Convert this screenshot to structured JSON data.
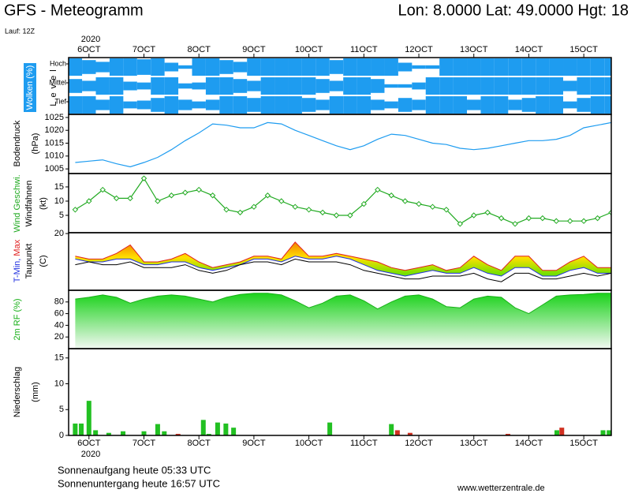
{
  "header": {
    "title": "GFS - Meteogramm",
    "location": "Lon: 8.0000 Lat: 49.0000 Hgt: 18",
    "run": "Lauf: 12Z"
  },
  "time_axis": {
    "year": "2020",
    "xlim": [
      5.63,
      15.5
    ],
    "xticks": [
      {
        "value": 6,
        "label": "6OCT"
      },
      {
        "value": 7,
        "label": "7OCT"
      },
      {
        "value": 8,
        "label": "8OCT"
      },
      {
        "value": 9,
        "label": "9OCT"
      },
      {
        "value": 10,
        "label": "10OCT"
      },
      {
        "value": 11,
        "label": "11OCT"
      },
      {
        "value": 12,
        "label": "12OCT"
      },
      {
        "value": 13,
        "label": "13OCT"
      },
      {
        "value": 14,
        "label": "14OCT"
      },
      {
        "value": 15,
        "label": "15OCT"
      }
    ]
  },
  "chart_data": [
    {
      "type": "cloud",
      "ylabel": "Wolken (%)",
      "level_label": "Level",
      "levels": [
        "Hoch",
        "Mittel",
        "Tief"
      ],
      "color": "#1e9cf0",
      "ylim": [
        0,
        100
      ],
      "x": [
        5.75,
        6,
        6.25,
        6.5,
        6.75,
        7,
        7.25,
        7.5,
        7.75,
        8,
        8.25,
        8.5,
        8.75,
        9,
        9.25,
        9.5,
        9.75,
        10,
        10.25,
        10.5,
        10.75,
        11,
        11.25,
        11.5,
        11.75,
        12,
        12.25,
        12.5,
        12.75,
        13,
        13.25,
        13.5,
        13.75,
        14,
        14.25,
        14.5,
        14.75,
        15,
        15.25,
        15.5
      ],
      "series": [
        {
          "values": [
            100,
            80,
            60,
            100,
            100,
            90,
            100,
            50,
            20,
            100,
            100,
            80,
            60,
            100,
            100,
            100,
            100,
            100,
            100,
            80,
            100,
            100,
            100,
            100,
            50,
            20,
            20,
            100,
            100,
            100,
            100,
            100,
            100,
            100,
            100,
            100,
            100,
            100,
            100,
            100
          ]
        },
        {
          "values": [
            80,
            60,
            100,
            100,
            50,
            40,
            100,
            100,
            30,
            40,
            100,
            100,
            80,
            60,
            100,
            100,
            100,
            100,
            80,
            60,
            100,
            100,
            80,
            20,
            20,
            40,
            100,
            100,
            100,
            100,
            100,
            100,
            100,
            100,
            100,
            100,
            60,
            100,
            100,
            100
          ]
        },
        {
          "values": [
            100,
            100,
            60,
            100,
            40,
            50,
            80,
            100,
            60,
            40,
            60,
            100,
            100,
            80,
            100,
            100,
            100,
            80,
            60,
            100,
            100,
            100,
            60,
            40,
            80,
            60,
            100,
            100,
            100,
            60,
            100,
            100,
            60,
            80,
            100,
            100,
            40,
            80,
            100,
            100
          ]
        }
      ]
    },
    {
      "type": "line",
      "ylabel": [
        "Bodendruck",
        "(hPa)"
      ],
      "ylim": [
        1003.2,
        1026.2
      ],
      "yticks": [
        1005,
        1010,
        1015,
        1020,
        1025
      ],
      "x": [
        5.75,
        6,
        6.25,
        6.5,
        6.75,
        7,
        7.25,
        7.5,
        7.75,
        8,
        8.25,
        8.5,
        8.75,
        9,
        9.25,
        9.5,
        9.75,
        10,
        10.25,
        10.5,
        10.75,
        11,
        11.25,
        11.5,
        11.75,
        12,
        12.25,
        12.5,
        12.75,
        13,
        13.25,
        13.5,
        13.75,
        14,
        14.25,
        14.5,
        14.75,
        15,
        15.25,
        15.5
      ],
      "series": [
        {
          "color": "#1e9cf0",
          "values": [
            1007.5,
            1008,
            1008.5,
            1007,
            1005.8,
            1007.5,
            1009.5,
            1012.5,
            1016,
            1019,
            1022.5,
            1022,
            1021,
            1021,
            1023,
            1022.5,
            1020,
            1018,
            1016,
            1014,
            1012.5,
            1014,
            1016.5,
            1018.5,
            1018,
            1016.5,
            1015,
            1014.5,
            1013,
            1012.5,
            1013,
            1014,
            1015,
            1016,
            1016,
            1016.5,
            1018,
            1021,
            1022,
            1023
          ]
        }
      ]
    },
    {
      "type": "line",
      "markers": true,
      "ylabel": [
        "Windfahnen",
        "(kt)"
      ],
      "ylim": [
        -1.1,
        19.7
      ],
      "yticks": [
        5,
        10,
        15
      ],
      "x": [
        5.75,
        6,
        6.25,
        6.5,
        6.75,
        7,
        7.25,
        7.5,
        7.75,
        8,
        8.25,
        8.5,
        8.75,
        9,
        9.25,
        9.5,
        9.75,
        10,
        10.25,
        10.5,
        10.75,
        11,
        11.25,
        11.5,
        11.75,
        12,
        12.25,
        12.5,
        12.75,
        13,
        13.25,
        13.5,
        13.75,
        14,
        14.25,
        14.5,
        14.75,
        15,
        15.25,
        15.5
      ],
      "series": [
        {
          "name": "Wind Geschwi.",
          "color": "#22aa22",
          "values": [
            7,
            10,
            14,
            11,
            11,
            18,
            10,
            12,
            13,
            14,
            12,
            7,
            6,
            8,
            12,
            10,
            8,
            7,
            6,
            5,
            5,
            9,
            14,
            12,
            10,
            9,
            8,
            7,
            2,
            5,
            6,
            4,
            2,
            4,
            4,
            3,
            3,
            3,
            4,
            6
          ]
        }
      ]
    },
    {
      "type": "range",
      "ylabel": [
        "(C)"
      ],
      "ylim": [
        0,
        20.3
      ],
      "yticks": [
        20
      ],
      "fill_colors": [
        "#f07800",
        "#ffe000",
        "#70e000"
      ],
      "x": [
        5.75,
        6,
        6.25,
        6.5,
        6.75,
        7,
        7.25,
        7.5,
        7.75,
        8,
        8.25,
        8.5,
        8.75,
        9,
        9.25,
        9.5,
        9.75,
        10,
        10.25,
        10.5,
        10.75,
        11,
        11.25,
        11.5,
        11.75,
        12,
        12.25,
        12.5,
        12.75,
        13,
        13.25,
        13.5,
        13.75,
        14,
        14.25,
        14.5,
        14.75,
        15,
        15.25,
        15.5
      ],
      "series": [
        {
          "name": "T-Min,",
          "color": "#2030e0",
          "values": [
            11,
            10,
            10,
            11,
            11,
            9,
            9,
            10,
            10,
            8,
            7,
            8,
            9,
            11,
            11,
            10,
            12,
            11,
            11,
            12,
            11,
            9,
            7,
            6,
            5,
            6,
            7,
            6,
            6,
            8,
            6,
            5,
            8,
            8,
            5,
            5,
            7,
            8,
            6,
            6
          ]
        },
        {
          "name": "Max",
          "color": "#e02020",
          "values": [
            12,
            11,
            11,
            13,
            16,
            10,
            10,
            11,
            13,
            10,
            8,
            9,
            10,
            12,
            12,
            11,
            17,
            12,
            12,
            13,
            12,
            11,
            10,
            8,
            7,
            8,
            9,
            7,
            8,
            12,
            9,
            7,
            12,
            12,
            7,
            7,
            10,
            12,
            8,
            8
          ]
        },
        {
          "name": "Taupunkt",
          "color": "#000000",
          "values": [
            9,
            10,
            9,
            9,
            10,
            8,
            8,
            8,
            9,
            7,
            6,
            7,
            9,
            10,
            10,
            9,
            11,
            10,
            10,
            10,
            9,
            7,
            6,
            5,
            4,
            4,
            5,
            5,
            5,
            6,
            4,
            3,
            6,
            6,
            4,
            4,
            5,
            6,
            5,
            6
          ]
        }
      ]
    },
    {
      "type": "area",
      "ylim": [
        0,
        100
      ],
      "yticks": [
        20,
        40,
        60,
        80
      ],
      "fill_colors": [
        "#10d010",
        "#f2f8f2"
      ],
      "x": [
        5.75,
        6,
        6.25,
        6.5,
        6.75,
        7,
        7.25,
        7.5,
        7.75,
        8,
        8.25,
        8.5,
        8.75,
        9,
        9.25,
        9.5,
        9.75,
        10,
        10.25,
        10.5,
        10.75,
        11,
        11.25,
        11.5,
        11.75,
        12,
        12.25,
        12.5,
        12.75,
        13,
        13.25,
        13.5,
        13.75,
        14,
        14.25,
        14.5,
        14.75,
        15,
        15.25,
        15.5
      ],
      "series": [
        {
          "name": "2m RF (%)",
          "color": "#18b018",
          "values": [
            85,
            88,
            92,
            88,
            78,
            85,
            90,
            92,
            90,
            85,
            80,
            88,
            93,
            95,
            95,
            92,
            82,
            70,
            78,
            90,
            92,
            82,
            68,
            80,
            90,
            92,
            85,
            72,
            70,
            85,
            90,
            88,
            70,
            60,
            75,
            90,
            92,
            93,
            95,
            95
          ]
        }
      ]
    },
    {
      "type": "bar",
      "ylabel": [
        "Niederschlag",
        "(mm)"
      ],
      "ylim": [
        0,
        16.8
      ],
      "yticks": [
        0,
        5,
        10,
        15
      ],
      "x": [
        5.75,
        5.86,
        6.0,
        6.12,
        6.36,
        6.62,
        7.0,
        7.25,
        7.37,
        7.62,
        8.08,
        8.18,
        8.34,
        8.49,
        8.63,
        10.38,
        11.5,
        11.61,
        11.84,
        13.62,
        14.51,
        14.6,
        15.35,
        15.46
      ],
      "values": [
        2.3,
        2.3,
        6.7,
        1,
        0.5,
        0.8,
        0.8,
        2.2,
        0.8,
        0.3,
        3,
        0.3,
        2.5,
        2.3,
        1.5,
        2.5,
        2.2,
        1,
        0.5,
        0.3,
        1,
        1.5,
        1,
        1
      ],
      "colors": [
        "#22c022",
        "#22c022",
        "#22c022",
        "#22c022",
        "#22c022",
        "#22c022",
        "#22c022",
        "#22c022",
        "#22c022",
        "#d03020",
        "#22c022",
        "#22c022",
        "#22c022",
        "#22c022",
        "#22c022",
        "#22c022",
        "#22c022",
        "#d03020",
        "#d03020",
        "#d03020",
        "#22c022",
        "#d03020",
        "#22c022",
        "#22c022"
      ]
    }
  ],
  "footer": {
    "sunrise": "Sonnenaufgang heute 05:33 UTC",
    "sunset": "Sonnenuntergang heute 16:57 UTC",
    "source": "www.wetterzentrale.de"
  }
}
